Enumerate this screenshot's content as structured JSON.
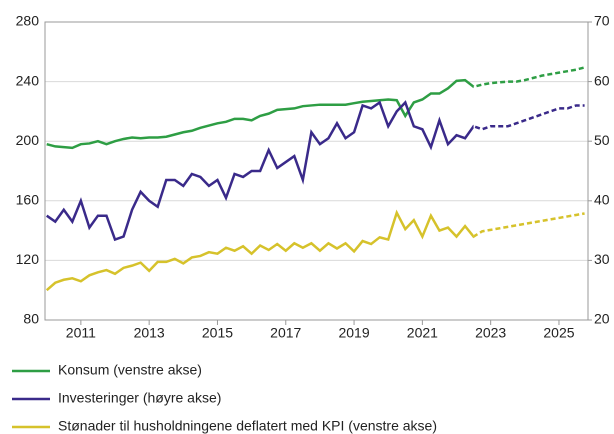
{
  "chart_data": {
    "type": "line",
    "x": [
      2010,
      2010.25,
      2010.5,
      2010.75,
      2011,
      2011.25,
      2011.5,
      2011.75,
      2012,
      2012.25,
      2012.5,
      2012.75,
      2013,
      2013.25,
      2013.5,
      2013.75,
      2014,
      2014.25,
      2014.5,
      2014.75,
      2015,
      2015.25,
      2015.5,
      2015.75,
      2016,
      2016.25,
      2016.5,
      2016.75,
      2017,
      2017.25,
      2017.5,
      2017.75,
      2018,
      2018.25,
      2018.5,
      2018.75,
      2019,
      2019.25,
      2019.5,
      2019.75,
      2020,
      2020.25,
      2020.5,
      2020.75,
      2021,
      2021.25,
      2021.5,
      2021.75,
      2022,
      2022.25,
      2022.5,
      2022.75,
      2023,
      2023.25,
      2023.5,
      2023.75,
      2024,
      2024.25,
      2024.5,
      2024.75,
      2025,
      2025.25,
      2025.5,
      2025.75
    ],
    "series": [
      {
        "name": "Konsum (venstre akse)",
        "color": "#2e9e44",
        "axis": "y",
        "values": [
          198,
          196.5,
          196,
          195.5,
          198,
          198.5,
          200,
          198,
          200,
          201.5,
          202.5,
          202,
          202.5,
          202.5,
          203,
          204.5,
          206,
          207,
          209,
          210.5,
          212,
          213,
          215,
          215,
          214,
          217,
          218.5,
          221,
          221.5,
          222,
          223.5,
          224,
          224.5,
          224.5,
          224.5,
          224.5,
          225.5,
          226.5,
          227,
          227.5,
          228,
          227.5,
          217,
          226,
          228,
          232,
          232,
          235.5,
          240.5,
          241,
          236.5,
          238,
          239,
          239.5,
          240,
          240,
          241,
          242.5,
          244,
          245,
          246,
          247,
          248,
          249.5
        ]
      },
      {
        "name": "Investeringer (høyre akse)",
        "color": "#3a2a8a",
        "axis": "y2",
        "values": [
          37.5,
          36.5,
          38.5,
          36.5,
          40,
          35.5,
          37.5,
          37.5,
          33.5,
          34,
          38.5,
          41.5,
          40,
          39,
          43.5,
          43.5,
          42.5,
          44.5,
          44,
          42.5,
          43.5,
          40.5,
          44.5,
          44,
          45,
          45,
          48.5,
          45.5,
          46.5,
          47.5,
          43.5,
          51.5,
          49.5,
          50.5,
          53,
          50.5,
          51.5,
          56,
          55.5,
          56.5,
          52.5,
          55,
          56.5,
          52.5,
          52,
          49,
          53.5,
          49.5,
          51,
          50.5,
          52.5,
          52,
          52.5,
          52.5,
          52.5,
          53,
          53.5,
          54,
          54.5,
          55,
          55.5,
          55.5,
          56,
          56
        ]
      },
      {
        "name": "Stønader til husholdningene deflatert med KPI (venstre akse)",
        "color": "#d6c22b",
        "axis": "y",
        "values": [
          100,
          105,
          107,
          108,
          106,
          110,
          112,
          113.5,
          111,
          115,
          116.5,
          118.5,
          113,
          119,
          119,
          121,
          118,
          122,
          123,
          125.5,
          124.5,
          128.5,
          126.5,
          129.5,
          124.5,
          130,
          127,
          131,
          126.5,
          131.5,
          128.5,
          131.5,
          126.5,
          131.5,
          128,
          131.5,
          126,
          133,
          131,
          135.5,
          134,
          152,
          141,
          147,
          136,
          150,
          140,
          142,
          136,
          143,
          136,
          139.5,
          140.5,
          141.5,
          142.5,
          143.5,
          144.5,
          145.5,
          146.5,
          147.5,
          148.5,
          149.5,
          150.5,
          151.5
        ]
      }
    ],
    "dashed_from": 2022.5,
    "xlim": [
      2009.95,
      2025.85
    ],
    "xticks": [
      2011,
      2013,
      2015,
      2017,
      2019,
      2021,
      2023,
      2025
    ],
    "ylim": [
      80,
      280
    ],
    "yticks": [
      80,
      120,
      160,
      200,
      240,
      280
    ],
    "y2lim": [
      20,
      70
    ],
    "y2ticks": [
      20,
      30,
      40,
      50,
      60,
      70
    ],
    "grid": true
  }
}
